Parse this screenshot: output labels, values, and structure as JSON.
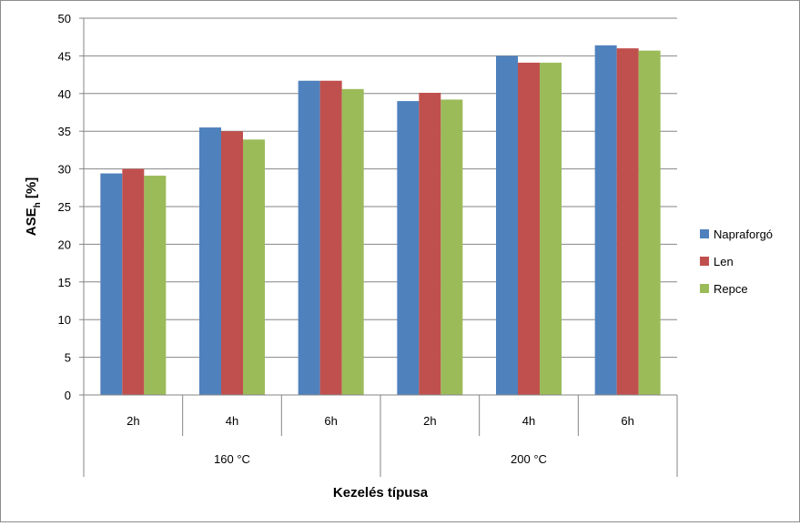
{
  "chart_data": {
    "type": "bar",
    "title": "",
    "ylabel_main": "ASE",
    "ylabel_sub": "h",
    "ylabel_suffix": " [%]",
    "xlabel": "Kezelés típusa",
    "ylim": [
      0,
      50
    ],
    "yticks": [
      0,
      5,
      10,
      15,
      20,
      25,
      30,
      35,
      40,
      45,
      50
    ],
    "grid": true,
    "legend_position": "right",
    "categories": [
      "2h",
      "4h",
      "6h",
      "2h",
      "4h",
      "6h"
    ],
    "groups": [
      {
        "label": "160 °C",
        "categories": [
          "2h",
          "4h",
          "6h"
        ]
      },
      {
        "label": "200 °C",
        "categories": [
          "2h",
          "4h",
          "6h"
        ]
      }
    ],
    "series": [
      {
        "name": "Napraforgó",
        "color": "#4f81bd",
        "values": [
          29.4,
          35.5,
          41.7,
          39.0,
          45.0,
          46.4
        ]
      },
      {
        "name": "Len",
        "color": "#c0504d",
        "values": [
          30.0,
          35.0,
          41.7,
          40.1,
          44.1,
          46.0
        ]
      },
      {
        "name": "Repce",
        "color": "#9bbb59",
        "values": [
          29.1,
          33.9,
          40.6,
          39.2,
          44.1,
          45.7
        ]
      }
    ]
  }
}
